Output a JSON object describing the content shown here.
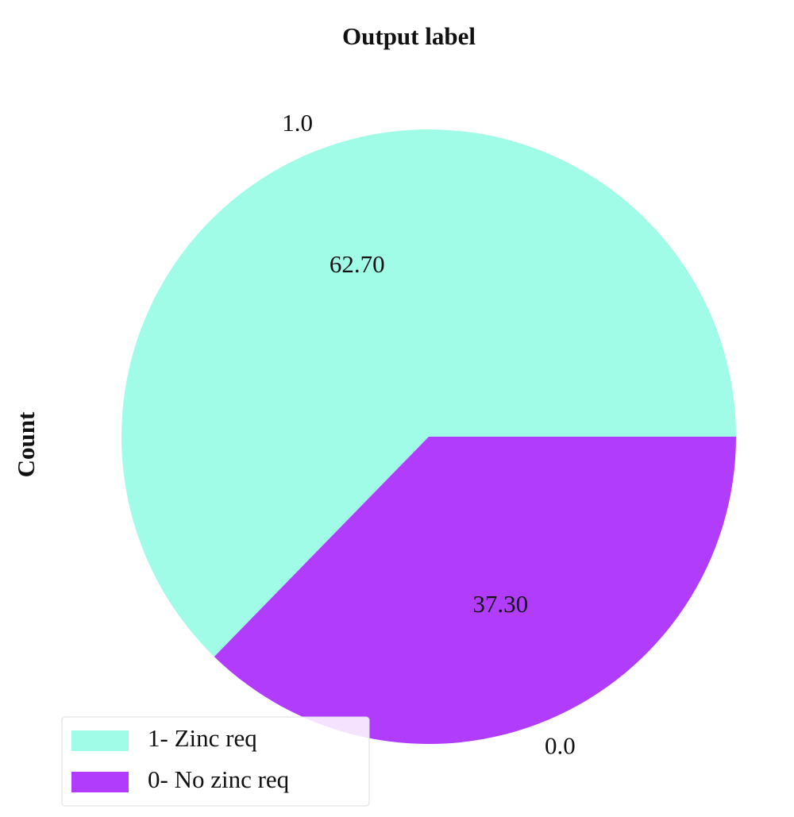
{
  "chart_data": {
    "type": "pie",
    "title": "Output label",
    "ylabel": "Count",
    "categories": [
      "1.0",
      "0.0"
    ],
    "values": [
      62.7,
      37.3
    ],
    "value_labels": [
      "62.70",
      "37.30"
    ],
    "colors": [
      "#a0fce6",
      "#b23cfc"
    ],
    "start_angle": 0,
    "legend": {
      "position": "lower left",
      "labels": [
        "1- Zinc req",
        "0- No zinc req"
      ]
    }
  }
}
